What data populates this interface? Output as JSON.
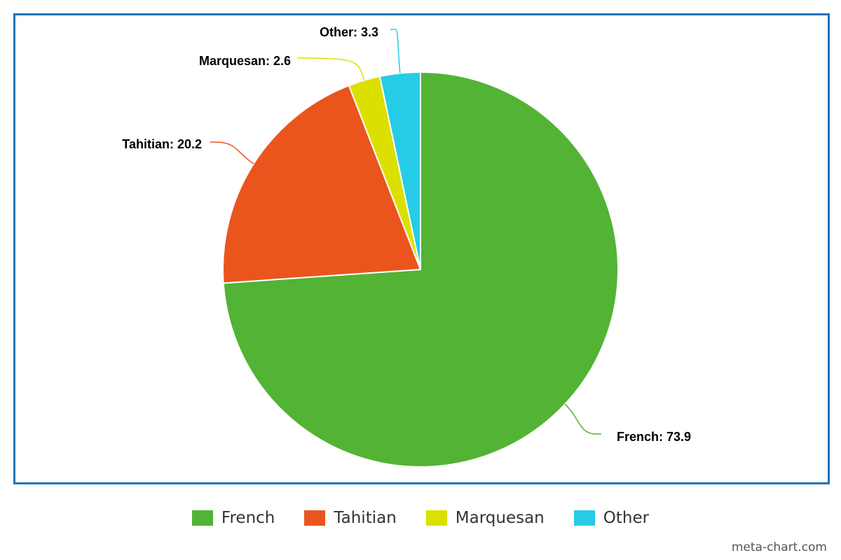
{
  "chart_data": {
    "type": "pie",
    "slices": [
      {
        "label": "French",
        "value": 73.9,
        "color": "#52b334",
        "data_label": "French: 73.9"
      },
      {
        "label": "Tahitian",
        "value": 20.2,
        "color": "#ea551d",
        "data_label": "Tahitian: 20.2"
      },
      {
        "label": "Marquesan",
        "value": 2.6,
        "color": "#dce000",
        "data_label": "Marquesan: 2.6"
      },
      {
        "label": "Other",
        "value": 3.3,
        "color": "#26cce6",
        "data_label": "Other: 3.3"
      }
    ],
    "legend_placement": "bottom",
    "start_angle": "12 o'clock",
    "direction": "clockwise"
  },
  "legend": {
    "items": [
      {
        "label": "French",
        "color": "#52b334"
      },
      {
        "label": "Tahitian",
        "color": "#ea551d"
      },
      {
        "label": "Marquesan",
        "color": "#dce000"
      },
      {
        "label": "Other",
        "color": "#26cce6"
      }
    ]
  },
  "watermark": "meta-chart.com",
  "frame_color": "#1f75bc"
}
